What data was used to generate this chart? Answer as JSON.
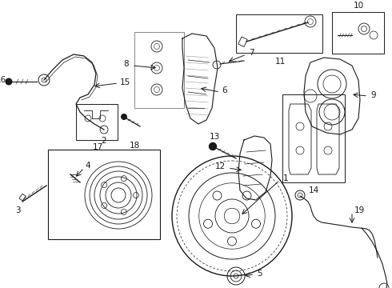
{
  "bg_color": "#ffffff",
  "lc": "#1a1a1a",
  "figsize": [
    4.9,
    3.6
  ],
  "dpi": 100
}
